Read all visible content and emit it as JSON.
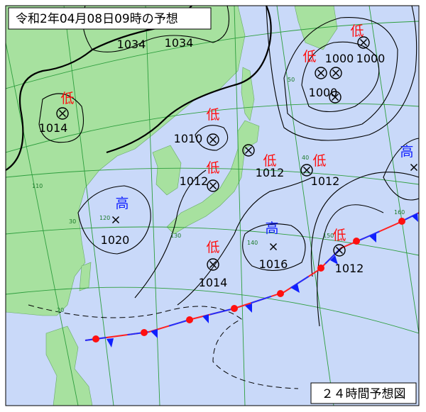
{
  "title": "令和2年04月08日09時の予想",
  "footer": "２４時間予想図",
  "systems": [
    {
      "label": "低",
      "pressure": 1014
    },
    {
      "label": "低",
      "pressure": 1010
    },
    {
      "label": "低",
      "pressure": 1012
    },
    {
      "label": "低",
      "pressure": 1012
    },
    {
      "label": "低",
      "pressure": 1012
    },
    {
      "label": "低",
      "pressure": 1000
    },
    {
      "label": "低"
    },
    {
      "label": "高",
      "pressure": 1020
    },
    {
      "label": "高",
      "pressure": 1016
    },
    {
      "label": "低",
      "pressure": 1014
    },
    {
      "label": "低",
      "pressure": 1012
    },
    {
      "label": "高"
    }
  ],
  "isobar_labels": [
    1034,
    1034,
    1000,
    1000
  ],
  "grid_labels": [
    50,
    40,
    30,
    20,
    110,
    120,
    130,
    140,
    150,
    160
  ]
}
